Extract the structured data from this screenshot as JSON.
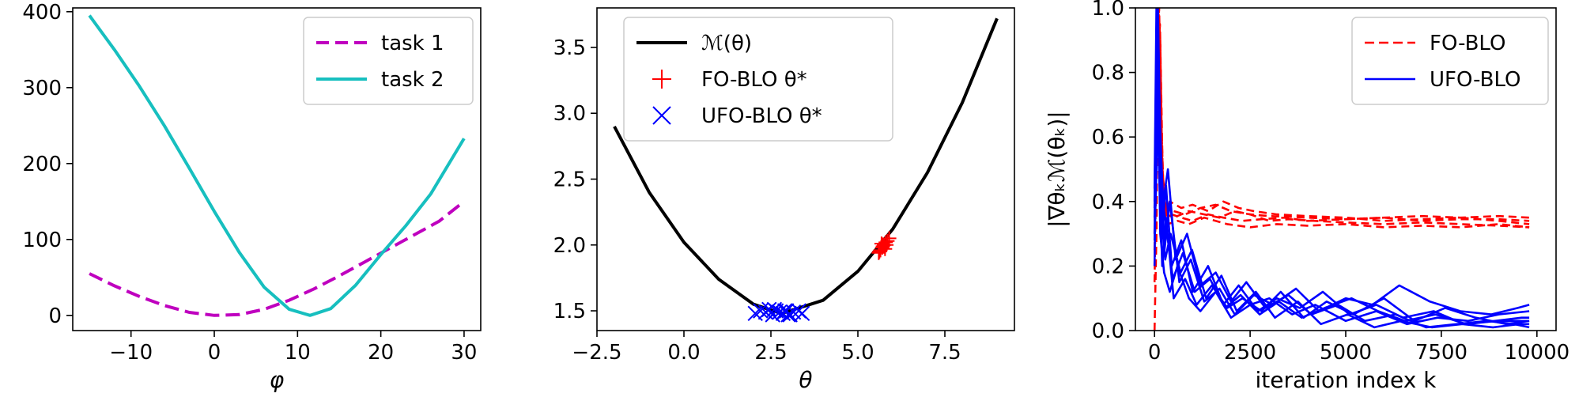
{
  "chart_data": [
    {
      "type": "line",
      "title": "",
      "xlabel": "φ",
      "ylabel": "",
      "xlim": [
        -17.0,
        32.0
      ],
      "ylim": [
        -20,
        405
      ],
      "xticks": [
        -10,
        0,
        10,
        20,
        30
      ],
      "xtick_labels": [
        "−10",
        "0",
        "10",
        "20",
        "30"
      ],
      "yticks": [
        0,
        100,
        200,
        300,
        400
      ],
      "ytick_labels": [
        "0",
        "100",
        "200",
        "300",
        "400"
      ],
      "legend": "top-right",
      "grid": false,
      "series": [
        {
          "name": "task 1",
          "color": "#bf00bf",
          "style": "dashed",
          "x": [
            -15,
            -12,
            -9,
            -6,
            -3,
            0,
            3,
            6,
            9,
            12,
            15,
            18,
            21,
            24,
            27,
            30
          ],
          "y": [
            55,
            39,
            25,
            13,
            4,
            0,
            1,
            8,
            20,
            35,
            52,
            70,
            88,
            106,
            124,
            150
          ]
        },
        {
          "name": "task 2",
          "color": "#17bfbf",
          "style": "solid",
          "x": [
            -15,
            -12,
            -9,
            -6,
            -3,
            0,
            3,
            6,
            9,
            11.5,
            14,
            17,
            20,
            23,
            26,
            30
          ],
          "y": [
            395,
            350,
            302,
            250,
            194,
            137,
            83,
            37,
            8,
            0,
            9,
            40,
            80,
            118,
            160,
            233
          ]
        }
      ]
    },
    {
      "type": "scatter",
      "title": "",
      "xlabel": "θ",
      "ylabel": "",
      "xlim": [
        -2.5,
        9.5
      ],
      "ylim": [
        1.35,
        3.8
      ],
      "xticks": [
        -2.5,
        0.0,
        2.5,
        5.0,
        7.5
      ],
      "xtick_labels": [
        "−2.5",
        "0.0",
        "2.5",
        "5.0",
        "7.5"
      ],
      "yticks": [
        1.5,
        2.0,
        2.5,
        3.0,
        3.5
      ],
      "ytick_labels": [
        "1.5",
        "2.0",
        "2.5",
        "3.0",
        "3.5"
      ],
      "legend": "top-center",
      "grid": false,
      "series": [
        {
          "name": "ℳ(θ)",
          "color": "#000000",
          "style": "line",
          "x": [
            -2,
            -1,
            0,
            1,
            2,
            2.8,
            4,
            5,
            6,
            7,
            8,
            9
          ],
          "y": [
            2.9,
            2.4,
            2.02,
            1.74,
            1.55,
            1.48,
            1.58,
            1.8,
            2.12,
            2.55,
            3.08,
            3.72
          ]
        },
        {
          "name": "FO-BLO θ*",
          "color": "#ff0000",
          "style": "plus",
          "x": [
            5.6,
            5.65,
            5.7,
            5.75,
            5.8,
            5.85,
            5.9,
            5.72,
            5.78,
            5.68,
            5.82,
            5.62
          ],
          "y": [
            1.94,
            1.96,
            1.98,
            2.0,
            2.02,
            2.03,
            2.05,
            1.99,
            1.97,
            2.01,
            2.0,
            1.95
          ]
        },
        {
          "name": "UFO-BLO θ*",
          "color": "#0000ff",
          "style": "x",
          "x": [
            2.05,
            2.2,
            2.35,
            2.45,
            2.55,
            2.65,
            2.75,
            2.85,
            2.95,
            3.05,
            3.15,
            3.3,
            3.4,
            2.6,
            2.9,
            3.0
          ],
          "y": [
            1.48,
            1.5,
            1.49,
            1.51,
            1.47,
            1.5,
            1.49,
            1.48,
            1.5,
            1.47,
            1.49,
            1.5,
            1.48,
            1.51,
            1.5,
            1.47
          ]
        }
      ]
    },
    {
      "type": "line",
      "title": "",
      "xlabel": "iteration index k",
      "ylabel": "|∇θₖℳ(θₖ)|",
      "xlim": [
        -500,
        10500
      ],
      "ylim": [
        0.0,
        1.0
      ],
      "xticks": [
        0,
        2500,
        5000,
        7500,
        10000
      ],
      "xtick_labels": [
        "0",
        "2500",
        "5000",
        "7500",
        "10000"
      ],
      "yticks": [
        0.0,
        0.2,
        0.4,
        0.6,
        0.8,
        1.0
      ],
      "ytick_labels": [
        "0.0",
        "0.2",
        "0.4",
        "0.6",
        "0.8",
        "1.0"
      ],
      "legend": "top-right",
      "grid": false,
      "series": [
        {
          "name": "FO-BLO",
          "color": "#ff0000",
          "style": "dashed",
          "x": [
            0,
            50,
            100,
            150,
            200,
            300,
            500,
            800,
            1200,
            1600,
            2000,
            2500,
            3000,
            4000,
            5000,
            6000,
            7000,
            8000,
            9000,
            9800
          ],
          "y": [
            0.0,
            0.3,
            1.0,
            0.9,
            0.5,
            0.38,
            0.37,
            0.36,
            0.38,
            0.39,
            0.37,
            0.36,
            0.355,
            0.35,
            0.345,
            0.35,
            0.34,
            0.345,
            0.345,
            0.34
          ]
        },
        {
          "x": [
            0,
            60,
            120,
            180,
            250,
            400,
            700,
            1000,
            1400,
            1800,
            2200,
            2600,
            3200,
            4000,
            5000,
            6000,
            7000,
            8000,
            9000,
            9800
          ],
          "y": [
            0.2,
            0.8,
            1.0,
            0.6,
            0.35,
            0.4,
            0.38,
            0.39,
            0.37,
            0.4,
            0.38,
            0.37,
            0.36,
            0.355,
            0.35,
            0.34,
            0.345,
            0.35,
            0.34,
            0.33
          ]
        },
        {
          "x": [
            0,
            80,
            160,
            240,
            320,
            500,
            900,
            1300,
            1700,
            2100,
            2500,
            3000,
            3500,
            4200,
            5000,
            6000,
            7000,
            8000,
            9000,
            9800
          ],
          "y": [
            0.3,
            1.0,
            0.7,
            0.42,
            0.36,
            0.35,
            0.37,
            0.36,
            0.35,
            0.37,
            0.36,
            0.34,
            0.345,
            0.34,
            0.335,
            0.33,
            0.335,
            0.33,
            0.325,
            0.32
          ]
        },
        {
          "x": [
            0,
            100,
            200,
            300,
            450,
            700,
            1000,
            1400,
            1800,
            2300,
            2800,
            3400,
            4000,
            5000,
            6000,
            7000,
            8000,
            9000,
            9800
          ],
          "y": [
            0.25,
            0.95,
            0.5,
            0.34,
            0.36,
            0.35,
            0.34,
            0.36,
            0.35,
            0.34,
            0.345,
            0.35,
            0.34,
            0.345,
            0.35,
            0.355,
            0.35,
            0.355,
            0.35
          ]
        },
        {
          "x": [
            0,
            70,
            140,
            220,
            350,
            600,
            900,
            1300,
            1900,
            2500,
            3200,
            4000,
            5000,
            6000,
            7000,
            8000,
            9000,
            9800
          ],
          "y": [
            0.15,
            0.7,
            0.95,
            0.45,
            0.33,
            0.34,
            0.33,
            0.35,
            0.33,
            0.32,
            0.33,
            0.325,
            0.33,
            0.32,
            0.325,
            0.32,
            0.33,
            0.32
          ]
        },
        {
          "name": "UFO-BLO",
          "color": "#0000ff",
          "style": "solid",
          "x": [
            0,
            50,
            100,
            150,
            250,
            400,
            600,
            900,
            1200,
            1600,
            2000,
            2500,
            3000,
            3600,
            4200,
            5000,
            5800,
            6600,
            7400,
            8200,
            9000,
            9800
          ],
          "y": [
            0.44,
            1.0,
            0.7,
            0.3,
            0.18,
            0.12,
            0.2,
            0.1,
            0.06,
            0.12,
            0.04,
            0.08,
            0.1,
            0.05,
            0.08,
            0.03,
            0.06,
            0.02,
            0.04,
            0.03,
            0.05,
            0.06
          ]
        },
        {
          "x": [
            0,
            60,
            120,
            200,
            300,
            500,
            800,
            1100,
            1500,
            1900,
            2300,
            2800,
            3300,
            3900,
            4500,
            5200,
            6000,
            6800,
            7600,
            8400,
            9200,
            9800
          ],
          "y": [
            0.4,
            1.0,
            0.5,
            0.2,
            0.35,
            0.1,
            0.16,
            0.08,
            0.14,
            0.07,
            0.1,
            0.06,
            0.12,
            0.04,
            0.09,
            0.05,
            0.1,
            0.03,
            0.07,
            0.04,
            0.02,
            0.03
          ]
        },
        {
          "x": [
            0,
            80,
            160,
            260,
            400,
            650,
            950,
            1300,
            1700,
            2100,
            2600,
            3100,
            3700,
            4300,
            5000,
            5700,
            6400,
            7200,
            8000,
            8800,
            9500,
            9800
          ],
          "y": [
            0.3,
            0.95,
            0.55,
            0.25,
            0.4,
            0.15,
            0.22,
            0.09,
            0.13,
            0.05,
            0.11,
            0.08,
            0.13,
            0.06,
            0.1,
            0.08,
            0.14,
            0.09,
            0.06,
            0.05,
            0.07,
            0.08
          ]
        },
        {
          "x": [
            0,
            100,
            200,
            300,
            450,
            700,
            1000,
            1400,
            1800,
            2200,
            2700,
            3200,
            3800,
            4400,
            5100,
            5800,
            6500,
            7300,
            8100,
            8900,
            9600,
            9800
          ],
          "y": [
            0.35,
            0.9,
            0.3,
            0.45,
            0.2,
            0.28,
            0.12,
            0.2,
            0.08,
            0.14,
            0.06,
            0.1,
            0.07,
            0.12,
            0.05,
            0.08,
            0.04,
            0.06,
            0.02,
            0.03,
            0.04,
            0.04
          ]
        },
        {
          "x": [
            0,
            70,
            140,
            230,
            350,
            550,
            850,
            1200,
            1600,
            2000,
            2400,
            2900,
            3500,
            4100,
            4800,
            5500,
            6300,
            7100,
            7900,
            8700,
            9400,
            9800
          ],
          "y": [
            0.2,
            0.85,
            0.6,
            0.4,
            0.5,
            0.22,
            0.3,
            0.14,
            0.18,
            0.09,
            0.15,
            0.07,
            0.11,
            0.05,
            0.08,
            0.03,
            0.05,
            0.01,
            0.02,
            0.03,
            0.02,
            0.01
          ]
        },
        {
          "x": [
            0,
            90,
            180,
            280,
            420,
            680,
            980,
            1350,
            1750,
            2150,
            2650,
            3150,
            3750,
            4350,
            5050,
            5750,
            6450,
            7250,
            8050,
            8850,
            9550,
            9800
          ],
          "y": [
            0.38,
            1.0,
            0.35,
            0.22,
            0.3,
            0.18,
            0.25,
            0.1,
            0.17,
            0.06,
            0.12,
            0.04,
            0.09,
            0.02,
            0.05,
            0.01,
            0.03,
            0.01,
            0.02,
            0.01,
            0.02,
            0.02
          ]
        },
        {
          "x": [
            0,
            110,
            220,
            330,
            480,
            740,
            1050,
            1450,
            1850,
            2250,
            2750,
            3250,
            3850,
            4450,
            5150,
            5850,
            6550,
            7350,
            8150,
            8950,
            9650,
            9800
          ],
          "y": [
            0.28,
            0.75,
            0.4,
            0.3,
            0.16,
            0.24,
            0.12,
            0.16,
            0.07,
            0.11,
            0.05,
            0.09,
            0.04,
            0.07,
            0.1,
            0.06,
            0.03,
            0.05,
            0.02,
            0.03,
            0.03,
            0.03
          ]
        }
      ]
    }
  ]
}
